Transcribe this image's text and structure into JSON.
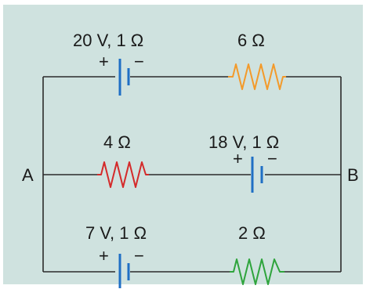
{
  "colors": {
    "panel": "#cfe2df",
    "wire": "#2b2b2b",
    "battery": "#1f6fc4",
    "resistor_top": "#f39a2a",
    "resistor_middle": "#d42a2a",
    "resistor_bottom": "#2ea43c"
  },
  "nodes": {
    "left": "A",
    "right": "B"
  },
  "top_branch": {
    "battery_label": "20 V, 1 Ω",
    "battery_plus": "+",
    "battery_minus": "−",
    "resistor_label": "6 Ω"
  },
  "middle_branch": {
    "resistor_label": "4 Ω",
    "battery_label": "18 V, 1 Ω",
    "battery_plus": "+",
    "battery_minus": "−"
  },
  "bottom_branch": {
    "battery_label": "7 V, 1 Ω",
    "battery_plus": "+",
    "battery_minus": "−",
    "resistor_label": "2 Ω"
  }
}
